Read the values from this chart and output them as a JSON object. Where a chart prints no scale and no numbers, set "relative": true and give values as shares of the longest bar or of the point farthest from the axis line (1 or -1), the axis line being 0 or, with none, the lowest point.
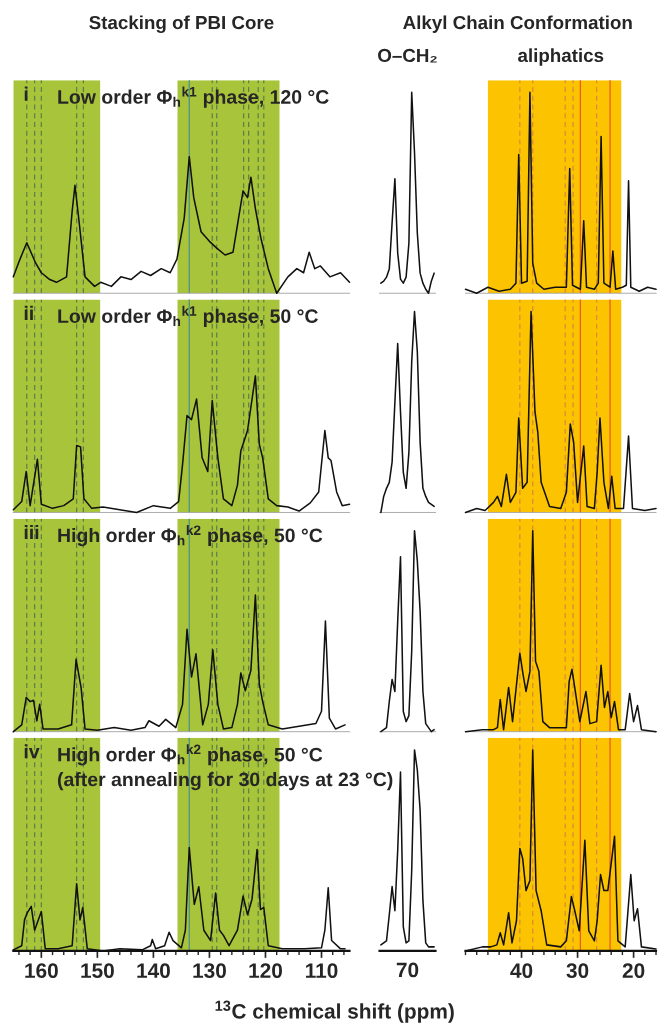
{
  "chart_data": [
    {
      "type": "line",
      "relative": true,
      "title": "Stacking of PBI Core",
      "annotations": [
        "i",
        "Low order Φ$_{h}$$^{k1}$ phase, 120 °C"
      ],
      "xlim": [
        165,
        105
      ],
      "tick_labels": false,
      "x": [
        165,
        163.8,
        162.6,
        161,
        160,
        158.5,
        157.3,
        155.5,
        154.5,
        154,
        153.2,
        152.2,
        150.5,
        149.4,
        147.5,
        145.8,
        144,
        142.2,
        140.5,
        138.6,
        137,
        135.8,
        134.5,
        133.6,
        132.8,
        131.5,
        130,
        128.7,
        127.2,
        125.8,
        124.8,
        124,
        123.2,
        122.6,
        121.8,
        120.8,
        119.5,
        118,
        116,
        114.4,
        113.2,
        112.2,
        111.2,
        110.2,
        108.5,
        106.6,
        105
      ],
      "series": [
        {
          "color": "#111111",
          "values": [
            0.12,
            0.25,
            0.37,
            0.22,
            0.15,
            0.1,
            0.08,
            0.12,
            0.6,
            0.79,
            0.5,
            0.12,
            0.05,
            0.08,
            0.05,
            0.12,
            0.1,
            0.16,
            0.13,
            0.18,
            0.15,
            0.25,
            0.55,
            1.0,
            0.7,
            0.45,
            0.38,
            0.33,
            0.28,
            0.3,
            0.55,
            0.75,
            0.7,
            0.85,
            0.62,
            0.4,
            0.18,
            0.0,
            0.12,
            0.18,
            0.15,
            0.3,
            0.18,
            0.2,
            0.12,
            0.15,
            0.08
          ]
        }
      ],
      "bands": [
        {
          "axis": "x",
          "from": 165,
          "to": 149.5,
          "color": "#a8c43a"
        },
        {
          "axis": "x",
          "from": 135.7,
          "to": 117.5,
          "color": "#a8c43a"
        }
      ],
      "ref_lines": [
        {
          "axis": "x",
          "value": 162.6,
          "color": "#5f7f4a",
          "line_style": "dashed"
        },
        {
          "axis": "x",
          "value": 161.2,
          "color": "#5f7f4a",
          "line_style": "dashed"
        },
        {
          "axis": "x",
          "value": 160,
          "color": "#5f7f4a",
          "line_style": "dashed"
        },
        {
          "axis": "x",
          "value": 153.7,
          "color": "#5f7f4a",
          "line_style": "dashed"
        },
        {
          "axis": "x",
          "value": 152.5,
          "color": "#5f7f4a",
          "line_style": "dashed"
        },
        {
          "axis": "x",
          "value": 129.5,
          "color": "#5f7f4a",
          "line_style": "dashed"
        },
        {
          "axis": "x",
          "value": 128.7,
          "color": "#5f7f4a",
          "line_style": "dashed"
        },
        {
          "axis": "x",
          "value": 123.9,
          "color": "#5f7f4a",
          "line_style": "dashed"
        },
        {
          "axis": "x",
          "value": 123,
          "color": "#5f7f4a",
          "line_style": "dashed"
        },
        {
          "axis": "x",
          "value": 121.3,
          "color": "#5f7f4a",
          "line_style": "dashed"
        },
        {
          "axis": "x",
          "value": 120.3,
          "color": "#5f7f4a",
          "line_style": "dashed"
        },
        {
          "axis": "x",
          "value": 133.6,
          "color": "#4f8f8a",
          "line_style": "solid"
        }
      ]
    },
    {
      "type": "line",
      "relative": true,
      "title": "Alkyl Chain Conformation",
      "subtitle": "O–CH₂",
      "tick_labels": false,
      "categories": [
        null,
        null,
        null,
        null,
        null,
        null,
        null,
        null,
        null,
        null,
        null,
        null,
        null,
        null,
        null,
        null,
        null,
        null,
        null,
        null
      ],
      "series": [
        {
          "color": "#111111",
          "values": [
            0.05,
            0.06,
            0.08,
            0.12,
            0.35,
            0.57,
            0.2,
            0.07,
            0.05,
            0.08,
            0.25,
            1.0,
            0.7,
            0.3,
            0.1,
            0.05,
            0.02,
            0.0,
            0.06,
            0.1
          ]
        }
      ]
    },
    {
      "type": "line",
      "relative": true,
      "subtitle": "aliphatics",
      "xlim": [
        50,
        16
      ],
      "tick_labels": false,
      "x": [
        50,
        48,
        46,
        44,
        42,
        41,
        40.5,
        40,
        39,
        38.5,
        38,
        37.3,
        36,
        34,
        32,
        31.4,
        30.9,
        29.5,
        28.9,
        28.4,
        27,
        26.3,
        25.8,
        25.3,
        24.2,
        23.7,
        23.2,
        22,
        21.3,
        20.9,
        20.5,
        19,
        17.5,
        16
      ],
      "series": [
        {
          "color": "#111111",
          "values": [
            0.02,
            0.0,
            0.03,
            0.01,
            0.02,
            0.05,
            0.69,
            0.05,
            0.06,
            1.0,
            0.15,
            0.05,
            0.02,
            0.03,
            0.03,
            0.62,
            0.04,
            0.02,
            0.36,
            0.03,
            0.02,
            0.05,
            0.78,
            0.05,
            0.03,
            0.21,
            0.02,
            0.03,
            0.04,
            0.56,
            0.03,
            0.01,
            0.03,
            0.02
          ]
        }
      ],
      "bands": [
        {
          "axis": "x",
          "from": 46,
          "to": 22.2,
          "color": "#fcc400"
        }
      ],
      "ref_lines": [
        {
          "axis": "x",
          "value": 40.3,
          "color": "#d98a3a",
          "line_style": "dashed"
        },
        {
          "axis": "x",
          "value": 38,
          "color": "#d98a3a",
          "line_style": "dashed"
        },
        {
          "axis": "x",
          "value": 32.2,
          "color": "#d98a3a",
          "line_style": "dashed"
        },
        {
          "axis": "x",
          "value": 30.8,
          "color": "#d98a3a",
          "line_style": "dashed"
        },
        {
          "axis": "x",
          "value": 26.6,
          "color": "#d98a3a",
          "line_style": "dashed"
        },
        {
          "axis": "x",
          "value": 29.5,
          "color": "#ee5a1c",
          "line_style": "solid"
        },
        {
          "axis": "x",
          "value": 24.2,
          "color": "#ee5a1c",
          "line_style": "solid"
        }
      ]
    },
    {
      "type": "line",
      "relative": true,
      "annotations": [
        "ii",
        "Low order Φ$_{h}$$^{k1}$ phase, 50 °C"
      ],
      "xlim": [
        165,
        105
      ],
      "tick_labels": false,
      "x": [
        165,
        163.5,
        162.7,
        162,
        160.7,
        160,
        158,
        156,
        154.3,
        153.7,
        153,
        152.4,
        151,
        149,
        146,
        143,
        140,
        137,
        135.5,
        134.8,
        134,
        133.2,
        132.3,
        131.3,
        130.3,
        129.5,
        128.5,
        127.5,
        126,
        125,
        124.4,
        123.2,
        121.8,
        121.1,
        120.5,
        119.5,
        118,
        116,
        114,
        112,
        110.5,
        109.4,
        108.8,
        108.3,
        107.3,
        106.3,
        105
      ],
      "series": [
        {
          "color": "#111111",
          "values": [
            0.02,
            0.08,
            0.3,
            0.05,
            0.39,
            0.06,
            0.03,
            0.05,
            0.1,
            0.49,
            0.48,
            0.1,
            0.03,
            0.04,
            0.02,
            0.0,
            0.05,
            0.03,
            0.08,
            0.35,
            0.71,
            0.68,
            0.83,
            0.4,
            0.3,
            0.82,
            0.4,
            0.1,
            0.05,
            0.2,
            0.45,
            0.6,
            1.0,
            0.5,
            0.4,
            0.1,
            0.05,
            0.04,
            0.01,
            0.07,
            0.15,
            0.6,
            0.4,
            0.38,
            0.15,
            0.05,
            0.06
          ]
        }
      ],
      "bands": [
        {
          "axis": "x",
          "from": 165,
          "to": 149.5,
          "color": "#a8c43a"
        },
        {
          "axis": "x",
          "from": 135.7,
          "to": 117.5,
          "color": "#a8c43a"
        }
      ],
      "ref_lines": [
        {
          "axis": "x",
          "value": 162.6,
          "color": "#5f7f4a",
          "line_style": "dashed"
        },
        {
          "axis": "x",
          "value": 161.2,
          "color": "#5f7f4a",
          "line_style": "dashed"
        },
        {
          "axis": "x",
          "value": 160,
          "color": "#5f7f4a",
          "line_style": "dashed"
        },
        {
          "axis": "x",
          "value": 153.7,
          "color": "#5f7f4a",
          "line_style": "dashed"
        },
        {
          "axis": "x",
          "value": 152.5,
          "color": "#5f7f4a",
          "line_style": "dashed"
        },
        {
          "axis": "x",
          "value": 129.5,
          "color": "#5f7f4a",
          "line_style": "dashed"
        },
        {
          "axis": "x",
          "value": 128.7,
          "color": "#5f7f4a",
          "line_style": "dashed"
        },
        {
          "axis": "x",
          "value": 123.9,
          "color": "#5f7f4a",
          "line_style": "dashed"
        },
        {
          "axis": "x",
          "value": 123,
          "color": "#5f7f4a",
          "line_style": "dashed"
        },
        {
          "axis": "x",
          "value": 121.3,
          "color": "#5f7f4a",
          "line_style": "dashed"
        },
        {
          "axis": "x",
          "value": 120.3,
          "color": "#5f7f4a",
          "line_style": "dashed"
        },
        {
          "axis": "x",
          "value": 133.6,
          "color": "#4f8f8a",
          "line_style": "solid"
        }
      ]
    },
    {
      "type": "line",
      "relative": true,
      "tick_labels": false,
      "categories": [
        null,
        null,
        null,
        null,
        null,
        null,
        null,
        null,
        null,
        null,
        null,
        null,
        null,
        null,
        null,
        null,
        null,
        null,
        null,
        null
      ],
      "series": [
        {
          "color": "#111111",
          "values": [
            0.0,
            0.08,
            0.12,
            0.15,
            0.25,
            0.55,
            0.84,
            0.5,
            0.2,
            0.12,
            0.3,
            0.75,
            1.0,
            0.8,
            0.35,
            0.12,
            0.08,
            0.05,
            0.04,
            0.03
          ]
        }
      ]
    },
    {
      "type": "line",
      "relative": true,
      "xlim": [
        50,
        16
      ],
      "tick_labels": false,
      "x": [
        50,
        48,
        46.5,
        45,
        44.3,
        43.6,
        42.7,
        42,
        41,
        40.5,
        39.8,
        39,
        38.3,
        37.6,
        37.1,
        36.5,
        35,
        33,
        32,
        31.3,
        30.7,
        30,
        28.9,
        28.3,
        27,
        26.5,
        26,
        25.3,
        24.5,
        23.9,
        23.3,
        21.8,
        20.9,
        20.2,
        18,
        16
      ],
      "series": [
        {
          "color": "#111111",
          "values": [
            0.0,
            0.02,
            0.01,
            0.05,
            0.08,
            0.03,
            0.19,
            0.05,
            0.1,
            0.47,
            0.12,
            0.15,
            1.0,
            0.5,
            0.4,
            0.15,
            0.03,
            0.02,
            0.1,
            0.44,
            0.35,
            0.05,
            0.33,
            0.03,
            0.02,
            0.2,
            0.47,
            0.15,
            0.02,
            0.18,
            0.02,
            0.02,
            0.38,
            0.02,
            0.01,
            0.02
          ]
        }
      ],
      "bands": [
        {
          "axis": "x",
          "from": 46,
          "to": 22.2,
          "color": "#fcc400"
        }
      ],
      "ref_lines": [
        {
          "axis": "x",
          "value": 40.3,
          "color": "#d98a3a",
          "line_style": "dashed"
        },
        {
          "axis": "x",
          "value": 38,
          "color": "#d98a3a",
          "line_style": "dashed"
        },
        {
          "axis": "x",
          "value": 32.2,
          "color": "#d98a3a",
          "line_style": "dashed"
        },
        {
          "axis": "x",
          "value": 30.8,
          "color": "#d98a3a",
          "line_style": "dashed"
        },
        {
          "axis": "x",
          "value": 26.6,
          "color": "#d98a3a",
          "line_style": "dashed"
        },
        {
          "axis": "x",
          "value": 29.5,
          "color": "#ee5a1c",
          "line_style": "solid"
        },
        {
          "axis": "x",
          "value": 24.2,
          "color": "#ee5a1c",
          "line_style": "solid"
        }
      ]
    },
    {
      "type": "line",
      "relative": true,
      "annotations": [
        "iii",
        "High order Φ$_{h}$$^{k2}$ phase, 50 °C"
      ],
      "xlim": [
        165,
        105
      ],
      "tick_labels": false,
      "x": [
        165,
        163.5,
        162.7,
        162,
        161.4,
        160.8,
        160.3,
        159.7,
        157,
        154.6,
        153.8,
        152.9,
        152.2,
        150,
        147,
        144,
        141.5,
        140.8,
        139,
        137.8,
        137.2,
        136,
        134.8,
        134,
        133.2,
        132.4,
        131.2,
        130.2,
        129.4,
        128.5,
        127.5,
        126,
        125,
        124.4,
        123.6,
        122.6,
        121.8,
        121.1,
        120.5,
        119.5,
        117,
        114,
        111,
        110,
        109.3,
        108.6,
        107.5,
        105.8
      ],
      "series": [
        {
          "color": "#111111",
          "values": [
            0.0,
            0.05,
            0.25,
            0.22,
            0.23,
            0.08,
            0.2,
            0.02,
            0.02,
            0.05,
            0.53,
            0.32,
            0.02,
            0.01,
            0.03,
            0.01,
            0.03,
            0.08,
            0.04,
            0.09,
            0.07,
            0.03,
            0.2,
            0.75,
            0.4,
            0.57,
            0.05,
            0.2,
            0.6,
            0.2,
            0.02,
            0.03,
            0.2,
            0.43,
            0.3,
            0.45,
            1.0,
            0.35,
            0.22,
            0.05,
            0.02,
            0.04,
            0.06,
            0.15,
            0.81,
            0.1,
            0.02,
            0.05
          ]
        }
      ],
      "bands": [
        {
          "axis": "x",
          "from": 165,
          "to": 149.5,
          "color": "#a8c43a"
        },
        {
          "axis": "x",
          "from": 135.7,
          "to": 117.5,
          "color": "#a8c43a"
        }
      ],
      "ref_lines": [
        {
          "axis": "x",
          "value": 162.6,
          "color": "#5f7f4a",
          "line_style": "dashed"
        },
        {
          "axis": "x",
          "value": 161.2,
          "color": "#5f7f4a",
          "line_style": "dashed"
        },
        {
          "axis": "x",
          "value": 160,
          "color": "#5f7f4a",
          "line_style": "dashed"
        },
        {
          "axis": "x",
          "value": 153.7,
          "color": "#5f7f4a",
          "line_style": "dashed"
        },
        {
          "axis": "x",
          "value": 152.5,
          "color": "#5f7f4a",
          "line_style": "dashed"
        },
        {
          "axis": "x",
          "value": 129.5,
          "color": "#5f7f4a",
          "line_style": "dashed"
        },
        {
          "axis": "x",
          "value": 128.7,
          "color": "#5f7f4a",
          "line_style": "dashed"
        },
        {
          "axis": "x",
          "value": 123.9,
          "color": "#5f7f4a",
          "line_style": "dashed"
        },
        {
          "axis": "x",
          "value": 123,
          "color": "#5f7f4a",
          "line_style": "dashed"
        },
        {
          "axis": "x",
          "value": 121.3,
          "color": "#5f7f4a",
          "line_style": "dashed"
        },
        {
          "axis": "x",
          "value": 120.3,
          "color": "#5f7f4a",
          "line_style": "dashed"
        },
        {
          "axis": "x",
          "value": 133.6,
          "color": "#4f8f8a",
          "line_style": "solid"
        }
      ]
    },
    {
      "type": "line",
      "relative": true,
      "tick_labels": false,
      "categories": [
        null,
        null,
        null,
        null,
        null,
        null,
        null,
        null,
        null,
        null,
        null,
        null,
        null,
        null,
        null,
        null,
        null,
        null,
        null,
        null
      ],
      "series": [
        {
          "color": "#111111",
          "values": [
            0.0,
            0.01,
            0.02,
            0.15,
            0.26,
            0.2,
            0.55,
            0.87,
            0.1,
            0.05,
            0.08,
            0.4,
            1.0,
            0.85,
            0.6,
            0.2,
            0.04,
            0.02,
            0.0,
            0.01
          ]
        }
      ]
    },
    {
      "type": "line",
      "relative": true,
      "xlim": [
        50,
        16
      ],
      "tick_labels": false,
      "x": [
        50,
        47,
        45,
        44.3,
        43.8,
        43.2,
        42.3,
        41.6,
        40.3,
        39.7,
        39.2,
        38.5,
        38,
        37.5,
        36.9,
        36.2,
        35,
        32,
        31.5,
        31,
        30.4,
        29.6,
        28.5,
        27.8,
        26.6,
        25.8,
        25.2,
        24.6,
        24,
        23.4,
        22.7,
        21.5,
        20.7,
        20,
        19.3,
        18.6,
        16
      ],
      "series": [
        {
          "color": "#111111",
          "values": [
            0.0,
            0.01,
            0.01,
            0.02,
            0.16,
            0.01,
            0.22,
            0.05,
            0.39,
            0.28,
            0.2,
            0.3,
            1.0,
            0.35,
            0.3,
            0.05,
            0.02,
            0.02,
            0.25,
            0.31,
            0.2,
            0.05,
            0.2,
            0.04,
            0.05,
            0.33,
            0.12,
            0.2,
            0.07,
            0.15,
            0.01,
            0.01,
            0.19,
            0.05,
            0.13,
            0.01,
            0.0
          ]
        }
      ],
      "bands": [
        {
          "axis": "x",
          "from": 46,
          "to": 22.2,
          "color": "#fcc400"
        }
      ],
      "ref_lines": [
        {
          "axis": "x",
          "value": 40.3,
          "color": "#d98a3a",
          "line_style": "dashed"
        },
        {
          "axis": "x",
          "value": 38,
          "color": "#d98a3a",
          "line_style": "dashed"
        },
        {
          "axis": "x",
          "value": 32.2,
          "color": "#d98a3a",
          "line_style": "dashed"
        },
        {
          "axis": "x",
          "value": 30.8,
          "color": "#d98a3a",
          "line_style": "dashed"
        },
        {
          "axis": "x",
          "value": 26.6,
          "color": "#d98a3a",
          "line_style": "dashed"
        },
        {
          "axis": "x",
          "value": 29.5,
          "color": "#ee5a1c",
          "line_style": "solid"
        },
        {
          "axis": "x",
          "value": 24.2,
          "color": "#ee5a1c",
          "line_style": "solid"
        }
      ]
    },
    {
      "type": "line",
      "relative": true,
      "annotations": [
        "iv",
        "High order Φ$_{h}$$^{k2}$ phase, 50 °C",
        "(after annealing for 30 days at 23 °C)"
      ],
      "xlim": [
        165,
        105
      ],
      "xticks": [
        160,
        150,
        140,
        130,
        120,
        110
      ],
      "tick_labels": "x",
      "x": [
        165,
        163.5,
        163,
        162.5,
        161.8,
        161.2,
        160,
        159.3,
        157,
        154.5,
        153.7,
        153.1,
        152.6,
        151.8,
        149,
        146,
        142,
        140.5,
        140.2,
        139.6,
        138,
        137.2,
        136.5,
        135,
        134.3,
        133.6,
        132.7,
        131.9,
        131,
        129.8,
        128.9,
        128.2,
        127.5,
        126.5,
        125,
        124,
        123.2,
        122.4,
        121.5,
        120.9,
        120.3,
        119.5,
        117,
        113,
        110,
        109.4,
        108.8,
        108.2,
        106.6,
        105.8
      ],
      "series": [
        {
          "color": "#111111",
          "values": [
            0.01,
            0.05,
            0.3,
            0.37,
            0.43,
            0.2,
            0.38,
            0.02,
            0.02,
            0.05,
            0.65,
            0.3,
            0.42,
            0.02,
            0.0,
            0.02,
            0.01,
            0.05,
            0.11,
            0.02,
            0.05,
            0.18,
            0.1,
            0.03,
            0.2,
            1.0,
            0.45,
            0.62,
            0.2,
            0.1,
            0.56,
            0.2,
            0.15,
            0.05,
            0.2,
            0.53,
            0.35,
            0.5,
            0.98,
            0.4,
            0.42,
            0.05,
            0.02,
            0.02,
            0.03,
            0.2,
            0.61,
            0.1,
            0.02,
            0.02
          ]
        }
      ],
      "bands": [
        {
          "axis": "x",
          "from": 165,
          "to": 149.5,
          "color": "#a8c43a"
        },
        {
          "axis": "x",
          "from": 135.7,
          "to": 117.5,
          "color": "#a8c43a"
        }
      ],
      "ref_lines": [
        {
          "axis": "x",
          "value": 162.6,
          "color": "#5f7f4a",
          "line_style": "dashed"
        },
        {
          "axis": "x",
          "value": 161.2,
          "color": "#5f7f4a",
          "line_style": "dashed"
        },
        {
          "axis": "x",
          "value": 160,
          "color": "#5f7f4a",
          "line_style": "dashed"
        },
        {
          "axis": "x",
          "value": 153.7,
          "color": "#5f7f4a",
          "line_style": "dashed"
        },
        {
          "axis": "x",
          "value": 152.5,
          "color": "#5f7f4a",
          "line_style": "dashed"
        },
        {
          "axis": "x",
          "value": 129.5,
          "color": "#5f7f4a",
          "line_style": "dashed"
        },
        {
          "axis": "x",
          "value": 128.7,
          "color": "#5f7f4a",
          "line_style": "dashed"
        },
        {
          "axis": "x",
          "value": 123.9,
          "color": "#5f7f4a",
          "line_style": "dashed"
        },
        {
          "axis": "x",
          "value": 123,
          "color": "#5f7f4a",
          "line_style": "dashed"
        },
        {
          "axis": "x",
          "value": 121.3,
          "color": "#5f7f4a",
          "line_style": "dashed"
        },
        {
          "axis": "x",
          "value": 120.3,
          "color": "#5f7f4a",
          "line_style": "dashed"
        },
        {
          "axis": "x",
          "value": 133.6,
          "color": "#4f8f8a",
          "line_style": "solid"
        }
      ]
    },
    {
      "type": "line",
      "relative": true,
      "xlabel": "$^{13}$C chemical shift (ppm)",
      "annotations": [
        "70"
      ],
      "tick_labels": false,
      "categories": [
        null,
        null,
        null,
        null,
        null,
        null,
        null,
        null,
        null,
        null,
        null,
        null,
        null,
        null,
        null,
        null,
        null,
        null,
        null,
        null
      ],
      "series": [
        {
          "color": "#111111",
          "values": [
            0.03,
            0.04,
            0.05,
            0.18,
            0.32,
            0.2,
            0.5,
            0.89,
            0.12,
            0.04,
            0.05,
            0.4,
            1.0,
            0.9,
            0.7,
            0.25,
            0.04,
            0.02,
            0.02,
            0.02
          ]
        }
      ]
    },
    {
      "type": "line",
      "relative": true,
      "xlim": [
        50,
        16
      ],
      "xticks": [
        40,
        30,
        20
      ],
      "tick_labels": "x",
      "x": [
        50,
        47,
        45.5,
        44.4,
        43.8,
        43.2,
        42.3,
        41.7,
        40.9,
        40.3,
        39.8,
        39.2,
        38.5,
        38,
        37.4,
        36.5,
        35.5,
        33,
        32,
        31.1,
        30.5,
        29.7,
        28.7,
        28,
        27,
        26.5,
        25.9,
        25.3,
        24.6,
        23.4,
        22.8,
        21.5,
        20.5,
        19.9,
        19.3,
        18.6,
        16
      ],
      "series": [
        {
          "color": "#111111",
          "values": [
            0.0,
            0.02,
            0.02,
            0.03,
            0.09,
            0.03,
            0.19,
            0.04,
            0.15,
            0.51,
            0.46,
            0.3,
            0.35,
            1.0,
            0.3,
            0.2,
            0.03,
            0.02,
            0.05,
            0.27,
            0.2,
            0.1,
            0.55,
            0.1,
            0.05,
            0.15,
            0.38,
            0.3,
            0.3,
            0.57,
            0.05,
            0.02,
            0.38,
            0.15,
            0.21,
            0.02,
            0.01
          ]
        }
      ],
      "bands": [
        {
          "axis": "x",
          "from": 46,
          "to": 22.2,
          "color": "#fcc400"
        }
      ],
      "ref_lines": [
        {
          "axis": "x",
          "value": 40.3,
          "color": "#d98a3a",
          "line_style": "dashed"
        },
        {
          "axis": "x",
          "value": 38,
          "color": "#d98a3a",
          "line_style": "dashed"
        },
        {
          "axis": "x",
          "value": 32.2,
          "color": "#d98a3a",
          "line_style": "dashed"
        },
        {
          "axis": "x",
          "value": 30.8,
          "color": "#d98a3a",
          "line_style": "dashed"
        },
        {
          "axis": "x",
          "value": 26.6,
          "color": "#d98a3a",
          "line_style": "dashed"
        },
        {
          "axis": "x",
          "value": 29.5,
          "color": "#ee5a1c",
          "line_style": "solid"
        },
        {
          "axis": "x",
          "value": 24.2,
          "color": "#ee5a1c",
          "line_style": "solid"
        }
      ]
    }
  ]
}
